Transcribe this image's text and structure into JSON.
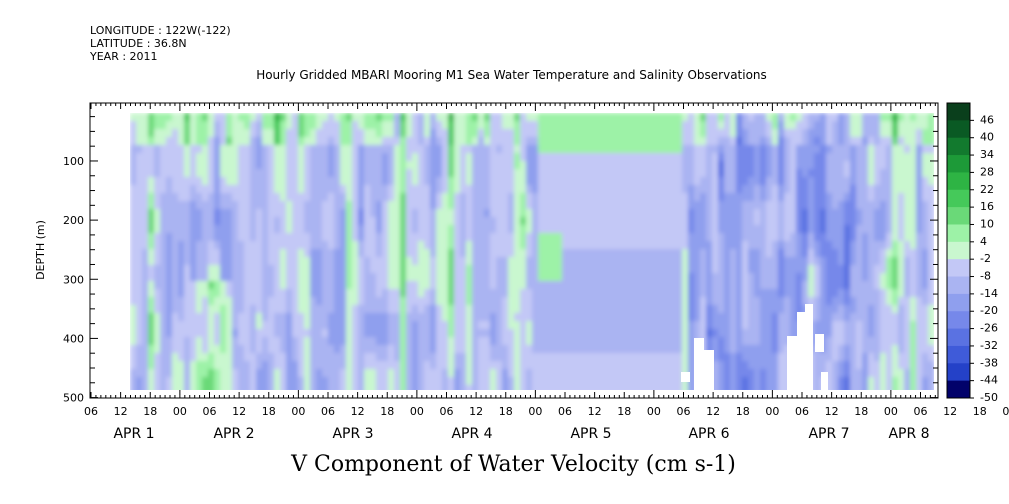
{
  "header": {
    "longitude": "LONGITUDE : 122W(-122)",
    "latitude": "LATITUDE : 36.8N",
    "year": "YEAR : 2011"
  },
  "chart_data": {
    "type": "heatmap",
    "title": "Hourly Gridded MBARI Mooring M1 Sea Water Temperature and Salinity Observations",
    "xlabel": "",
    "ylabel": "DEPTH (m)",
    "zlabel": "V Component of Water Velocity (cm s-1)",
    "y_ticks": [
      100,
      200,
      300,
      400,
      500
    ],
    "ylim": [
      500,
      10
    ],
    "x_hour_labels": [
      "06",
      "12",
      "18",
      "00",
      "06",
      "12",
      "18",
      "00",
      "06",
      "12",
      "18",
      "00",
      "06",
      "12",
      "18",
      "00",
      "06",
      "12",
      "18",
      "00",
      "06",
      "12",
      "18",
      "00",
      "06",
      "12",
      "18",
      "00",
      "06",
      "12",
      "18",
      "00",
      "06"
    ],
    "x_date_labels": [
      "APR  1",
      "APR  2",
      "APR  3",
      "APR  4",
      "APR  5",
      "APR  6",
      "APR  7",
      "APR  8"
    ],
    "colorbar_levels": [
      "46",
      "40",
      "34",
      "28",
      "22",
      "16",
      "10",
      "4",
      "-2",
      "-8",
      "-14",
      "-20",
      "-26",
      "-32",
      "-38",
      "-44",
      "-50"
    ],
    "colors": {
      "strong_positive": "#0a5a24",
      "positive": "#34c94f",
      "weak_positive": "#9df2a7",
      "near_zero": "#aab4f2",
      "negative": "#5a72e2",
      "strong_negative": "#02026a",
      "background": "#ffffff"
    },
    "grid": false
  }
}
